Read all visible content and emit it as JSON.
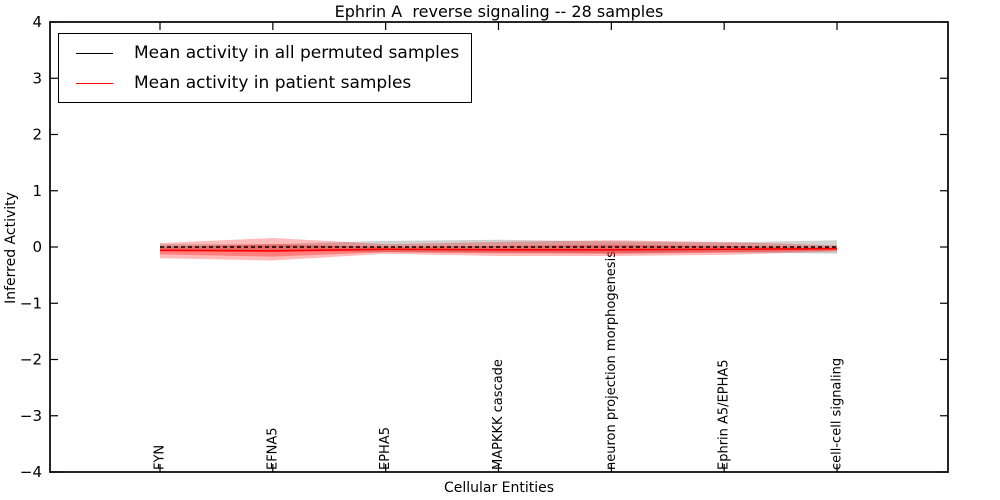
{
  "figure": {
    "title": "Ephrin A  reverse signaling -- 28 samples",
    "xlabel": "Cellular Entities",
    "ylabel": "Inferred Activity"
  },
  "legend": {
    "entries": [
      {
        "label": "Mean activity in all permuted samples",
        "color": "#000000"
      },
      {
        "label": "Mean activity in patient samples",
        "color": "#ff0000"
      }
    ],
    "position": "upper left"
  },
  "chart_data": {
    "type": "line",
    "title": "Ephrin A  reverse signaling -- 28 samples",
    "xlabel": "Cellular Entities",
    "ylabel": "Inferred Activity",
    "ylim": [
      -4,
      4
    ],
    "yticks": [
      4,
      3,
      2,
      1,
      0,
      -1,
      -2,
      -3,
      -4
    ],
    "grid": false,
    "legend_position": "upper left",
    "categories": [
      "FYN",
      "EFNA5",
      "EPHA5",
      "MAPKKK cascade",
      "neuron projection morphogenesis",
      "Ephrin A5/EPHA5",
      "cell-cell signaling"
    ],
    "series": [
      {
        "name": "Mean activity in all permuted samples",
        "color": "#000000",
        "line_style": "dashed",
        "values": [
          0,
          0,
          0,
          0,
          0,
          0,
          0
        ],
        "band_upper": [
          0.05,
          0.05,
          0.11,
          0.13,
          0.1,
          0.08,
          0.12
        ],
        "band_lower": [
          -0.06,
          -0.06,
          -0.09,
          -0.1,
          -0.11,
          -0.09,
          -0.12
        ],
        "band_color": "#aaaaaa",
        "band_opacity": 0.55
      },
      {
        "name": "Mean activity in patient samples",
        "color": "#ff0000",
        "line_style": "solid",
        "values": [
          -0.06,
          -0.07,
          -0.04,
          -0.05,
          -0.05,
          -0.04,
          -0.03
        ],
        "band_upper": [
          0.07,
          0.16,
          0.05,
          0.09,
          0.12,
          0.09,
          0.03
        ],
        "band_lower": [
          -0.2,
          -0.24,
          -0.12,
          -0.16,
          -0.16,
          -0.14,
          -0.08
        ],
        "band_inner_upper": [
          0.0,
          0.05,
          0.0,
          0.02,
          0.04,
          0.02,
          -0.01
        ],
        "band_inner_lower": [
          -0.13,
          -0.17,
          -0.09,
          -0.11,
          -0.12,
          -0.1,
          -0.06
        ],
        "band_color": "#ff0000",
        "band_opacity": 0.27
      }
    ]
  }
}
